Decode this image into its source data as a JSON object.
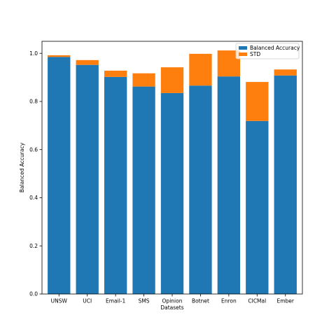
{
  "chart_data": {
    "type": "bar",
    "stacked": true,
    "xlabel": "Datasets",
    "ylabel": "Balanced Accuracy",
    "ylim": [
      0,
      1.05
    ],
    "yticks": [
      "0.0",
      "0.2",
      "0.4",
      "0.6",
      "0.8",
      "1.0"
    ],
    "ytick_values": [
      0,
      0.2,
      0.4,
      0.6,
      0.8,
      1.0
    ],
    "categories": [
      "UNSW",
      "UCI",
      "Email-1",
      "SMS",
      "Opinion",
      "Botnet",
      "Enron",
      "CICMal",
      "Ember"
    ],
    "series": [
      {
        "name": "Balanced Accuracy",
        "color": "#1f77b4",
        "values": [
          0.985,
          0.952,
          0.902,
          0.862,
          0.835,
          0.866,
          0.904,
          0.719,
          0.908
        ]
      },
      {
        "name": "STD",
        "color": "#ff7f0e",
        "values": [
          0.007,
          0.02,
          0.026,
          0.055,
          0.107,
          0.132,
          0.108,
          0.162,
          0.025
        ]
      }
    ],
    "legend_position": "top-right",
    "grid": false
  }
}
